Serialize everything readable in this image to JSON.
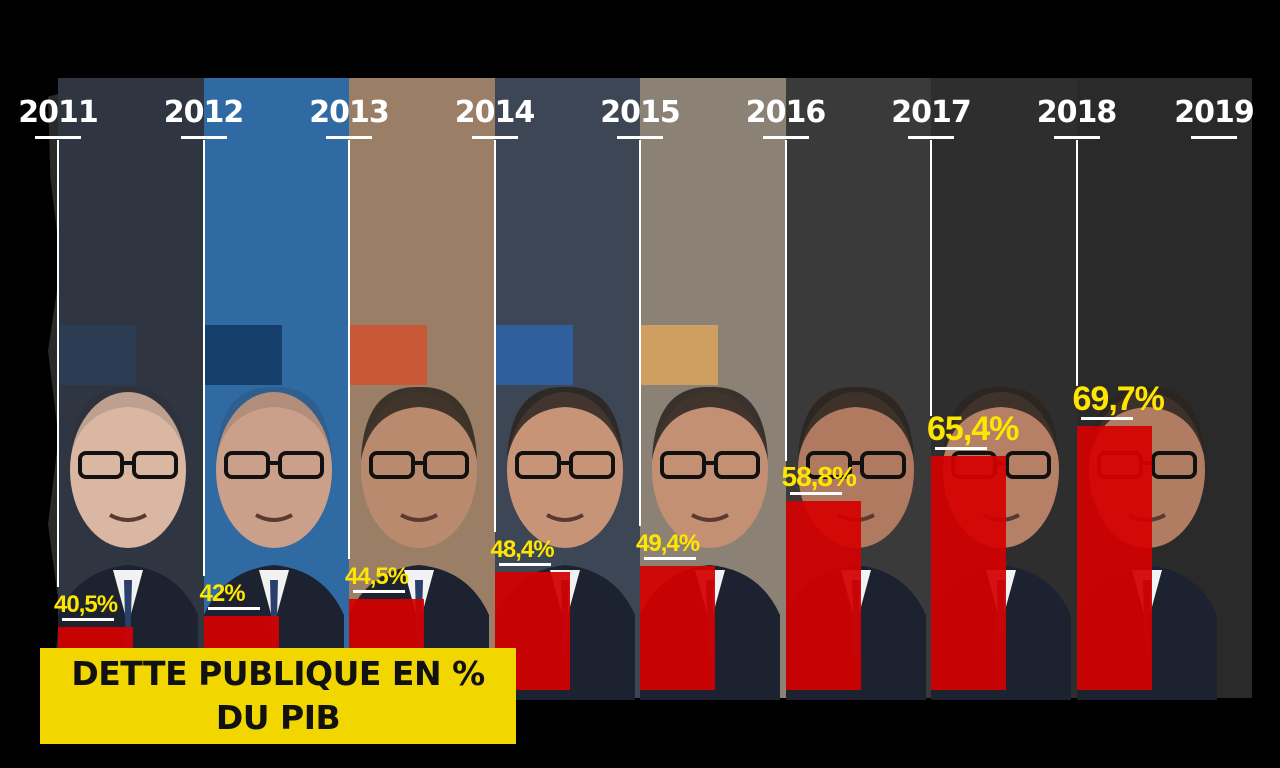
{
  "chart_data": {
    "type": "bar",
    "title": "DETTE PUBLIQUE EN % DU PIB",
    "categories": [
      "2011",
      "2012",
      "2013",
      "2014",
      "2015",
      "2016",
      "2017",
      "2018",
      "2019"
    ],
    "values": [
      40.5,
      42,
      44.5,
      48.4,
      49.4,
      58.8,
      65.4,
      69.7,
      null
    ],
    "value_labels": [
      "40,5%",
      "42%",
      "44,5%",
      "48,4%",
      "49,4%",
      "58,8%",
      "65,4%",
      "69,7%",
      ""
    ],
    "ylim": [
      0,
      100
    ],
    "grid": false,
    "legend": "none"
  },
  "colors": {
    "bar": "#d40000",
    "value_label": "#ffe600",
    "caption_bg": "#f2d600",
    "panels": [
      "#2f3642",
      "#2f6aa3",
      "#9a7e66",
      "#3c4655",
      "#8b8275",
      "#3a3a3a",
      "#2e2e2e",
      "#2a2a2a",
      "#2a2a2a"
    ],
    "tabs": [
      "#2c3c52",
      "#173f6c",
      "#c85838",
      "#2f5f9c",
      "#cf9f62",
      null,
      null,
      null,
      null
    ]
  },
  "icons": {
    "portraits": [
      "person-portrait-icon"
    ]
  }
}
